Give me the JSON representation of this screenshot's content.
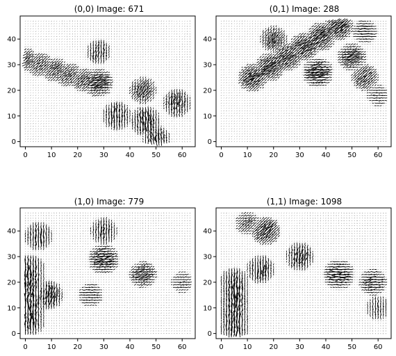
{
  "figure": {
    "panel_titles": [
      "(0,0) Image: 671",
      "(0,1) Image: 288",
      "(1,0) Image: 779",
      "(1,1) Image: 1098"
    ]
  },
  "chart_data": [
    {
      "type": "quiver",
      "title": "(0,0) Image: 671",
      "xlabel": "",
      "ylabel": "",
      "xlim": [
        -2,
        65
      ],
      "ylim": [
        -2,
        49
      ],
      "xticks": [
        0,
        10,
        20,
        30,
        40,
        50,
        60
      ],
      "yticks": [
        0,
        10,
        20,
        30,
        40
      ],
      "tick_labels_x": [
        "0",
        "10",
        "20",
        "30",
        "40",
        "50",
        "60"
      ],
      "tick_labels_y": [
        "0",
        "10",
        "20",
        "30",
        "40"
      ],
      "grid": [
        64,
        48
      ],
      "hotspots": [
        {
          "x": 0,
          "y": 32,
          "x_end": 28,
          "y_end": 22,
          "angle_deg": 35,
          "strength": 0.6
        },
        {
          "x": 28,
          "y": 23,
          "angle_deg": 20,
          "strength": 0.9
        },
        {
          "x": 28,
          "y": 35,
          "angle_deg": 80,
          "strength": 0.6
        },
        {
          "x": 35,
          "y": 10,
          "angle_deg": 90,
          "strength": 0.9
        },
        {
          "x": 46,
          "y": 8,
          "angle_deg": 95,
          "strength": 1.0
        },
        {
          "x": 58,
          "y": 15,
          "angle_deg": 80,
          "strength": 0.8
        },
        {
          "x": 45,
          "y": 20,
          "angle_deg": 60,
          "strength": 0.7
        },
        {
          "x": 50,
          "y": 1,
          "angle_deg": 100,
          "strength": 0.8
        }
      ]
    },
    {
      "type": "quiver",
      "title": "(0,1) Image: 288",
      "xlabel": "",
      "ylabel": "",
      "xlim": [
        -2,
        65
      ],
      "ylim": [
        -2,
        49
      ],
      "xticks": [
        0,
        10,
        20,
        30,
        40,
        50,
        60
      ],
      "yticks": [
        0,
        10,
        20,
        30,
        40
      ],
      "tick_labels_x": [
        "0",
        "10",
        "20",
        "30",
        "40",
        "50",
        "60"
      ],
      "tick_labels_y": [
        "0",
        "10",
        "20",
        "30",
        "40"
      ],
      "grid": [
        64,
        48
      ],
      "hotspots": [
        {
          "x": 12,
          "y": 25,
          "x_end": 45,
          "y_end": 45,
          "angle_deg": 35,
          "strength": 0.9
        },
        {
          "x": 20,
          "y": 40,
          "angle_deg": 60,
          "strength": 0.7
        },
        {
          "x": 37,
          "y": 27,
          "angle_deg": 10,
          "strength": 1.0
        },
        {
          "x": 50,
          "y": 33,
          "angle_deg": 20,
          "strength": 0.8
        },
        {
          "x": 55,
          "y": 25,
          "angle_deg": 40,
          "strength": 0.7
        },
        {
          "x": 55,
          "y": 43,
          "angle_deg": 0,
          "strength": 0.6
        },
        {
          "x": 60,
          "y": 18,
          "angle_deg": 0,
          "strength": 0.4
        }
      ]
    },
    {
      "type": "quiver",
      "title": "(1,0) Image: 779",
      "xlabel": "",
      "ylabel": "",
      "xlim": [
        -2,
        65
      ],
      "ylim": [
        -2,
        49
      ],
      "xticks": [
        0,
        10,
        20,
        30,
        40,
        50,
        60
      ],
      "yticks": [
        0,
        10,
        20,
        30,
        40
      ],
      "tick_labels_x": [
        "0",
        "10",
        "20",
        "30",
        "40",
        "50",
        "60"
      ],
      "tick_labels_y": [
        "0",
        "10",
        "20",
        "30",
        "40"
      ],
      "grid": [
        64,
        48
      ],
      "hotspots": [
        {
          "x": 2,
          "y": 25,
          "x_end": 2,
          "y_end": 5,
          "angle_deg": 90,
          "strength": 0.9
        },
        {
          "x": 9,
          "y": 15,
          "angle_deg": 80,
          "strength": 0.9
        },
        {
          "x": 5,
          "y": 38,
          "angle_deg": 90,
          "strength": 0.8
        },
        {
          "x": 30,
          "y": 29,
          "angle_deg": 15,
          "strength": 1.0
        },
        {
          "x": 30,
          "y": 40,
          "angle_deg": 85,
          "strength": 0.7
        },
        {
          "x": 45,
          "y": 23,
          "angle_deg": 20,
          "strength": 0.7
        },
        {
          "x": 25,
          "y": 15,
          "angle_deg": 0,
          "strength": 0.5
        },
        {
          "x": 60,
          "y": 20,
          "angle_deg": 10,
          "strength": 0.4
        }
      ]
    },
    {
      "type": "quiver",
      "title": "(1,1) Image: 1098",
      "xlabel": "",
      "ylabel": "",
      "xlim": [
        -2,
        65
      ],
      "ylim": [
        -2,
        49
      ],
      "xticks": [
        0,
        10,
        20,
        30,
        40,
        50,
        60
      ],
      "yticks": [
        0,
        10,
        20,
        30,
        40
      ],
      "tick_labels_x": [
        "0",
        "10",
        "20",
        "30",
        "40",
        "50",
        "60"
      ],
      "tick_labels_y": [
        "0",
        "10",
        "20",
        "30",
        "40"
      ],
      "grid": [
        64,
        48
      ],
      "hotspots": [
        {
          "x": 5,
          "y": 20,
          "x_end": 5,
          "y_end": 2,
          "angle_deg": 90,
          "strength": 0.9
        },
        {
          "x": 15,
          "y": 25,
          "angle_deg": 85,
          "strength": 0.8
        },
        {
          "x": 17,
          "y": 40,
          "angle_deg": 45,
          "strength": 0.9
        },
        {
          "x": 30,
          "y": 30,
          "angle_deg": 80,
          "strength": 0.8
        },
        {
          "x": 45,
          "y": 23,
          "angle_deg": 0,
          "strength": 1.0
        },
        {
          "x": 58,
          "y": 20,
          "angle_deg": 10,
          "strength": 0.7
        },
        {
          "x": 60,
          "y": 10,
          "angle_deg": 90,
          "strength": 0.5
        },
        {
          "x": 10,
          "y": 43,
          "angle_deg": 30,
          "strength": 0.5
        }
      ]
    }
  ]
}
